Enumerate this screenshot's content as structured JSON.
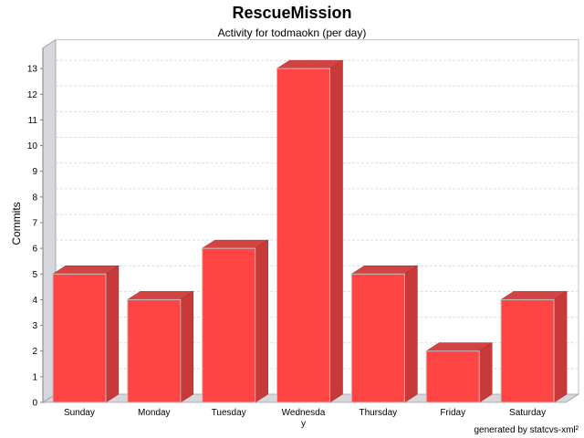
{
  "title": "RescueMission",
  "subtitle": "Activity for todmaokn (per day)",
  "footer": "generated by statcvs-xml²",
  "colors": {
    "bar_front": "#ff4444",
    "bar_side": "#c83a3a",
    "bar_top": "#d24444",
    "wall": "#d6d6dc",
    "grid": "#dddddd"
  },
  "chart_data": {
    "type": "bar",
    "categories": [
      "Sunday",
      "Monday",
      "Tuesday",
      "Wednesday",
      "Thursday",
      "Friday",
      "Saturday"
    ],
    "values": [
      5,
      4,
      6,
      13,
      5,
      2,
      4
    ],
    "xlabel": "",
    "ylabel": "Commits",
    "ylim": [
      0,
      13.8
    ],
    "yticks": [
      0,
      1,
      2,
      3,
      4,
      5,
      6,
      7,
      8,
      9,
      10,
      11,
      12,
      13
    ],
    "grid": true
  }
}
